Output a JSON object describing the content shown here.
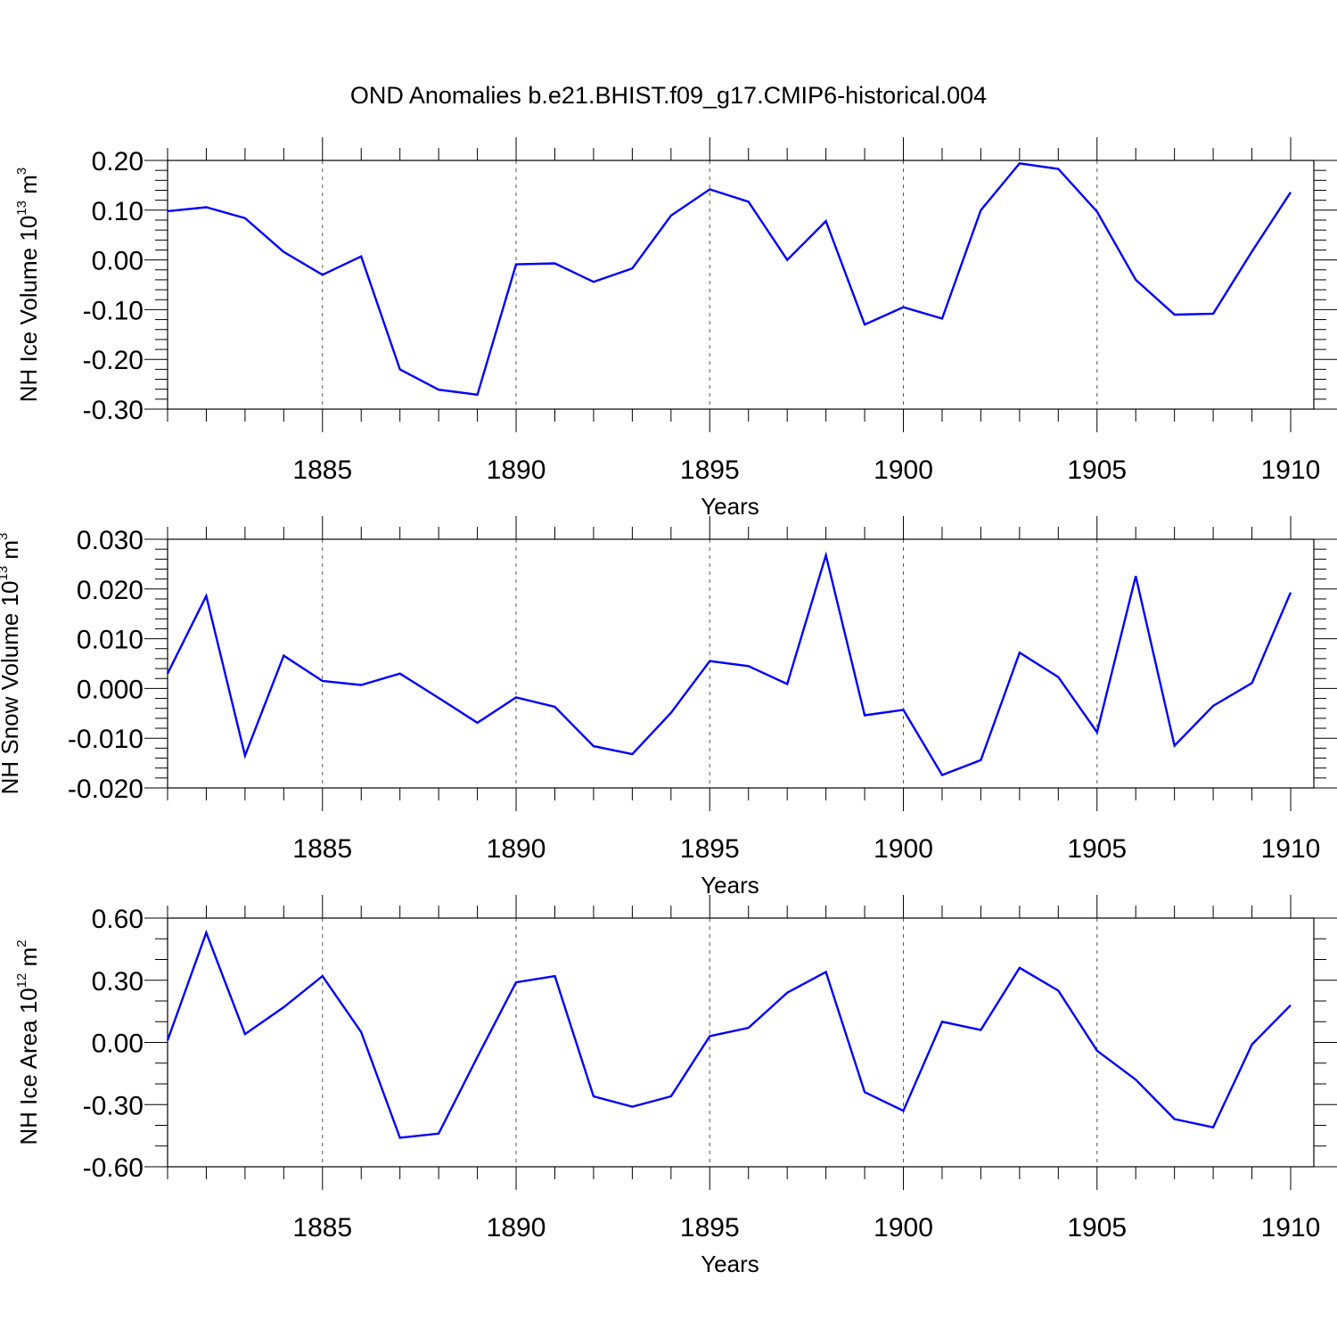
{
  "title": "OND Anomalies b.e21.BHIST.f09_g17.CMIP6-historical.004",
  "chart_data": [
    {
      "type": "line",
      "panel": "top",
      "title": "",
      "xlabel": "Years",
      "ylabel": {
        "prefix": "NH Ice Volume 10",
        "exp": "13",
        "unit": " m",
        "unit_exp": "3"
      },
      "xlim": [
        1881,
        1910
      ],
      "ylim": [
        -0.3,
        0.2
      ],
      "yticks": [
        -0.3,
        -0.2,
        -0.1,
        0.0,
        0.1,
        0.2
      ],
      "ytick_labels": [
        "-0.30",
        "-0.20",
        "-0.10",
        "0.00",
        "0.10",
        "0.20"
      ],
      "xticks": [
        1885,
        1890,
        1895,
        1900,
        1905,
        1910
      ],
      "xtick_labels": [
        "1885",
        "1890",
        "1895",
        "1900",
        "1905",
        "1910"
      ],
      "vlines": [
        1885,
        1890,
        1895,
        1900,
        1905
      ],
      "series": [
        {
          "name": "NH Ice Volume",
          "color": "#0000ff",
          "x": [
            1881,
            1882,
            1883,
            1884,
            1885,
            1886,
            1887,
            1888,
            1889,
            1890,
            1891,
            1892,
            1893,
            1894,
            1895,
            1896,
            1897,
            1898,
            1899,
            1900,
            1901,
            1902,
            1903,
            1904,
            1905,
            1906,
            1907,
            1908,
            1909,
            1910
          ],
          "values": [
            0.098,
            0.106,
            0.084,
            0.016,
            -0.03,
            0.007,
            -0.22,
            -0.261,
            -0.271,
            -0.009,
            -0.007,
            -0.044,
            -0.017,
            0.089,
            0.142,
            0.117,
            0.0,
            0.078,
            -0.13,
            -0.095,
            -0.118,
            0.1,
            0.194,
            0.183,
            0.097,
            -0.04,
            -0.11,
            -0.108,
            0.017,
            0.136
          ]
        }
      ]
    },
    {
      "type": "line",
      "panel": "middle",
      "title": "",
      "xlabel": "Years",
      "ylabel": {
        "prefix": "NH Snow Volume 10",
        "exp": "13",
        "unit": " m",
        "unit_exp": "3"
      },
      "xlim": [
        1881,
        1910
      ],
      "ylim": [
        -0.02,
        0.03
      ],
      "yticks": [
        -0.02,
        -0.01,
        0.0,
        0.01,
        0.02,
        0.03
      ],
      "ytick_labels": [
        "-0.020",
        "-0.010",
        "0.000",
        "0.010",
        "0.020",
        "0.030"
      ],
      "xticks": [
        1885,
        1890,
        1895,
        1900,
        1905,
        1910
      ],
      "xtick_labels": [
        "1885",
        "1890",
        "1895",
        "1900",
        "1905",
        "1910"
      ],
      "vlines": [
        1885,
        1890,
        1895,
        1900,
        1905
      ],
      "series": [
        {
          "name": "NH Snow Volume",
          "color": "#0000ff",
          "x": [
            1881,
            1882,
            1883,
            1884,
            1885,
            1886,
            1887,
            1888,
            1889,
            1890,
            1891,
            1892,
            1893,
            1894,
            1895,
            1896,
            1897,
            1898,
            1899,
            1900,
            1901,
            1902,
            1903,
            1904,
            1905,
            1906,
            1907,
            1908,
            1909,
            1910
          ],
          "values": [
            0.003,
            0.0186,
            -0.0135,
            0.0066,
            0.0015,
            0.0007,
            0.003,
            -0.0019,
            -0.0069,
            -0.0018,
            -0.0037,
            -0.0116,
            -0.0132,
            -0.0049,
            0.0055,
            0.0045,
            0.0009,
            0.0268,
            -0.0054,
            -0.0043,
            -0.0174,
            -0.0144,
            0.0072,
            0.0023,
            -0.0088,
            0.0226,
            -0.0115,
            -0.0035,
            0.0011,
            0.0193
          ]
        }
      ]
    },
    {
      "type": "line",
      "panel": "bottom",
      "title": "",
      "xlabel": "Years",
      "ylabel": {
        "prefix": "NH Ice Area 10",
        "exp": "12",
        "unit": " m",
        "unit_exp": "2"
      },
      "xlim": [
        1881,
        1910
      ],
      "ylim": [
        -0.6,
        0.6
      ],
      "yticks": [
        -0.6,
        -0.3,
        0.0,
        0.3,
        0.6
      ],
      "ytick_labels": [
        "-0.60",
        "-0.30",
        "0.00",
        "0.30",
        "0.60"
      ],
      "xticks": [
        1885,
        1890,
        1895,
        1900,
        1905,
        1910
      ],
      "xtick_labels": [
        "1885",
        "1890",
        "1895",
        "1900",
        "1905",
        "1910"
      ],
      "vlines": [
        1885,
        1890,
        1895,
        1900,
        1905
      ],
      "series": [
        {
          "name": "NH Ice Area",
          "color": "#0000ff",
          "x": [
            1881,
            1882,
            1883,
            1884,
            1885,
            1886,
            1887,
            1888,
            1889,
            1890,
            1891,
            1892,
            1893,
            1894,
            1895,
            1896,
            1897,
            1898,
            1899,
            1900,
            1901,
            1902,
            1903,
            1904,
            1905,
            1906,
            1907,
            1908,
            1909,
            1910
          ],
          "values": [
            0.01,
            0.53,
            0.04,
            0.17,
            0.32,
            0.05,
            -0.46,
            -0.44,
            -0.07,
            0.29,
            0.32,
            -0.26,
            -0.31,
            -0.26,
            0.03,
            0.07,
            0.24,
            0.34,
            -0.24,
            -0.33,
            0.1,
            0.06,
            0.36,
            0.25,
            -0.04,
            -0.18,
            -0.37,
            -0.41,
            -0.01,
            0.18
          ]
        }
      ]
    }
  ]
}
